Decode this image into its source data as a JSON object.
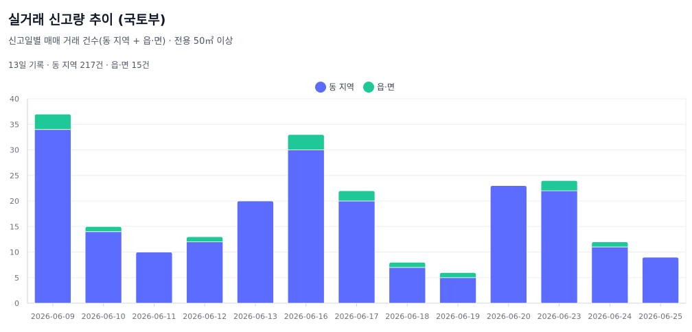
{
  "header": {
    "title": "실거래 신고량 추이 (국토부)",
    "subtitle": "신고일별 매매 거래 건수(동 지역 + 읍·면) · 전용 50㎡ 이상",
    "summary": "13일 기록 · 동 지역 217건 · 읍·면 15건"
  },
  "chart_data": {
    "type": "bar",
    "stacked": true,
    "categories": [
      "2026-06-09",
      "2026-06-10",
      "2026-06-11",
      "2026-06-12",
      "2026-06-13",
      "2026-06-16",
      "2026-06-17",
      "2026-06-18",
      "2026-06-19",
      "2026-06-20",
      "2026-06-23",
      "2026-06-24",
      "2026-06-25"
    ],
    "series": [
      {
        "name": "동 지역",
        "color": "#5b6cff",
        "values": [
          34,
          14,
          10,
          12,
          20,
          30,
          20,
          7,
          5,
          23,
          22,
          11,
          9
        ]
      },
      {
        "name": "읍·면",
        "color": "#1ec997",
        "values": [
          3,
          1,
          0,
          1,
          0,
          3,
          2,
          1,
          1,
          0,
          2,
          1,
          0
        ]
      }
    ],
    "ylim": [
      0,
      40
    ],
    "yticks": [
      0,
      5,
      10,
      15,
      20,
      25,
      30,
      35,
      40
    ],
    "grid": true,
    "legend_position": "top-center",
    "xlabel": "",
    "ylabel": ""
  }
}
